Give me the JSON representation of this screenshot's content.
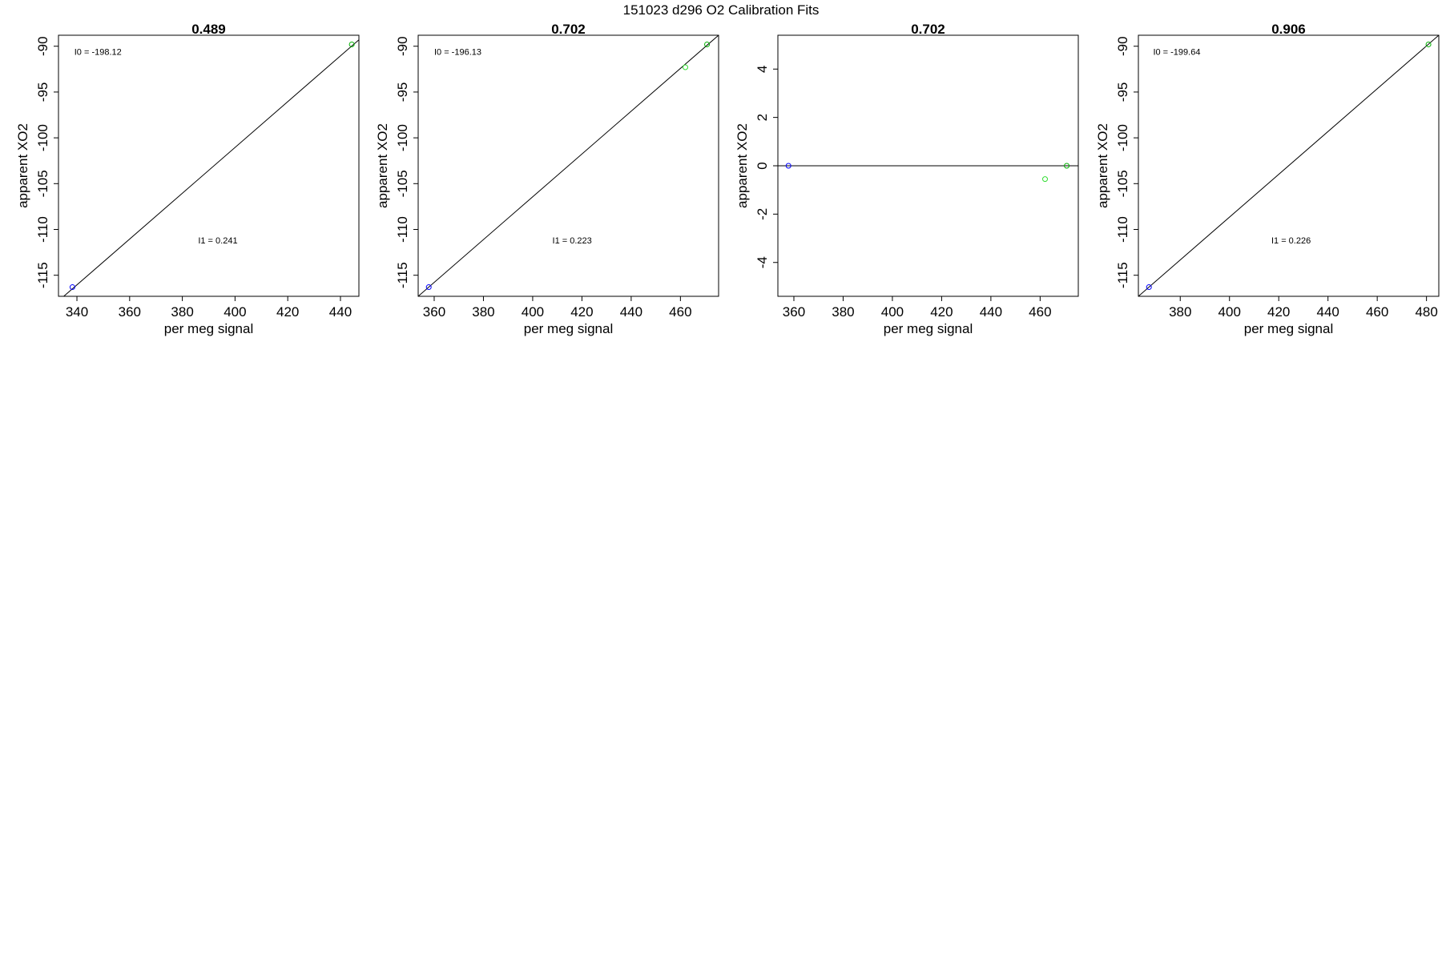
{
  "page_title": "151023   d296   O2 Calibration Fits",
  "colors": {
    "fit_line": "#000000",
    "point_blue": "#0000ff",
    "point_green_dark": "#00b000",
    "point_green_light": "#33dd33"
  },
  "chart_data": [
    {
      "type": "scatter",
      "title": "0.489",
      "xlabel": "per meg signal",
      "ylabel": "apparent XO2",
      "xlim": [
        333,
        447
      ],
      "ylim": [
        -117.3,
        -88.8
      ],
      "xticks": [
        "340",
        "360",
        "380",
        "400",
        "420",
        "440"
      ],
      "yticks": [
        "-90",
        "-95",
        "-100",
        "-105",
        "-110",
        "-115"
      ],
      "points": [
        {
          "x": 338.3,
          "y": -116.3,
          "color": "blue"
        },
        {
          "x": 444.3,
          "y": -89.8,
          "color": "green-dark"
        }
      ],
      "fit_line": {
        "x": [
          333,
          447
        ],
        "y": [
          -117.8,
          -89.3
        ]
      },
      "annotations": [
        {
          "text": "I0 =  -198.12",
          "at": [
            339,
            -90.6
          ]
        },
        {
          "text": "I1 =  0.241",
          "at": [
            386,
            -111.2
          ]
        }
      ]
    },
    {
      "type": "scatter",
      "title": "0.702",
      "xlabel": "per meg signal",
      "ylabel": "apparent XO2",
      "xlim": [
        353.5,
        475.5
      ],
      "ylim": [
        -117.3,
        -88.8
      ],
      "xticks": [
        "360",
        "380",
        "400",
        "420",
        "440",
        "460"
      ],
      "yticks": [
        "-90",
        "-95",
        "-100",
        "-105",
        "-110",
        "-115"
      ],
      "points": [
        {
          "x": 357.8,
          "y": -116.3,
          "color": "blue"
        },
        {
          "x": 462.0,
          "y": -92.3,
          "color": "green-light"
        },
        {
          "x": 470.8,
          "y": -89.8,
          "color": "green-dark"
        }
      ],
      "fit_line": {
        "x": [
          353.5,
          475.5
        ],
        "y": [
          -117.3,
          -88.8
        ]
      },
      "annotations": [
        {
          "text": "I0 =  -196.13",
          "at": [
            360,
            -90.6
          ]
        },
        {
          "text": "I1 =  0.223",
          "at": [
            408,
            -111.2
          ]
        }
      ]
    },
    {
      "type": "scatter",
      "title": "0.702",
      "xlabel": "per meg signal",
      "ylabel": "apparent XO2",
      "xlim": [
        353.5,
        475.5
      ],
      "ylim": [
        -5.4,
        5.4
      ],
      "xticks": [
        "360",
        "380",
        "400",
        "420",
        "440",
        "460"
      ],
      "yticks": [
        "4",
        "2",
        "0",
        "-2",
        "-4"
      ],
      "points": [
        {
          "x": 357.8,
          "y": 0.0,
          "color": "blue"
        },
        {
          "x": 462.0,
          "y": -0.55,
          "color": "green-light"
        },
        {
          "x": 470.8,
          "y": 0.0,
          "color": "green-dark"
        }
      ],
      "fit_line": {
        "x": [
          353.5,
          475.5
        ],
        "y": [
          0,
          0
        ]
      },
      "annotations": []
    },
    {
      "type": "scatter",
      "title": "0.906",
      "xlabel": "per meg signal",
      "ylabel": "apparent XO2",
      "xlim": [
        363,
        485
      ],
      "ylim": [
        -117.3,
        -88.8
      ],
      "xticks": [
        "380",
        "400",
        "420",
        "440",
        "460",
        "480"
      ],
      "yticks": [
        "-90",
        "-95",
        "-100",
        "-105",
        "-110",
        "-115"
      ],
      "points": [
        {
          "x": 367.3,
          "y": -116.3,
          "color": "blue"
        },
        {
          "x": 480.8,
          "y": -89.8,
          "color": "green-dark"
        }
      ],
      "fit_line": {
        "x": [
          363,
          485
        ],
        "y": [
          -117.3,
          -88.8
        ]
      },
      "annotations": [
        {
          "text": "I0 =  -199.64",
          "at": [
            369,
            -90.6
          ]
        },
        {
          "text": "I1 =  0.226",
          "at": [
            417,
            -111.2
          ]
        }
      ]
    }
  ]
}
